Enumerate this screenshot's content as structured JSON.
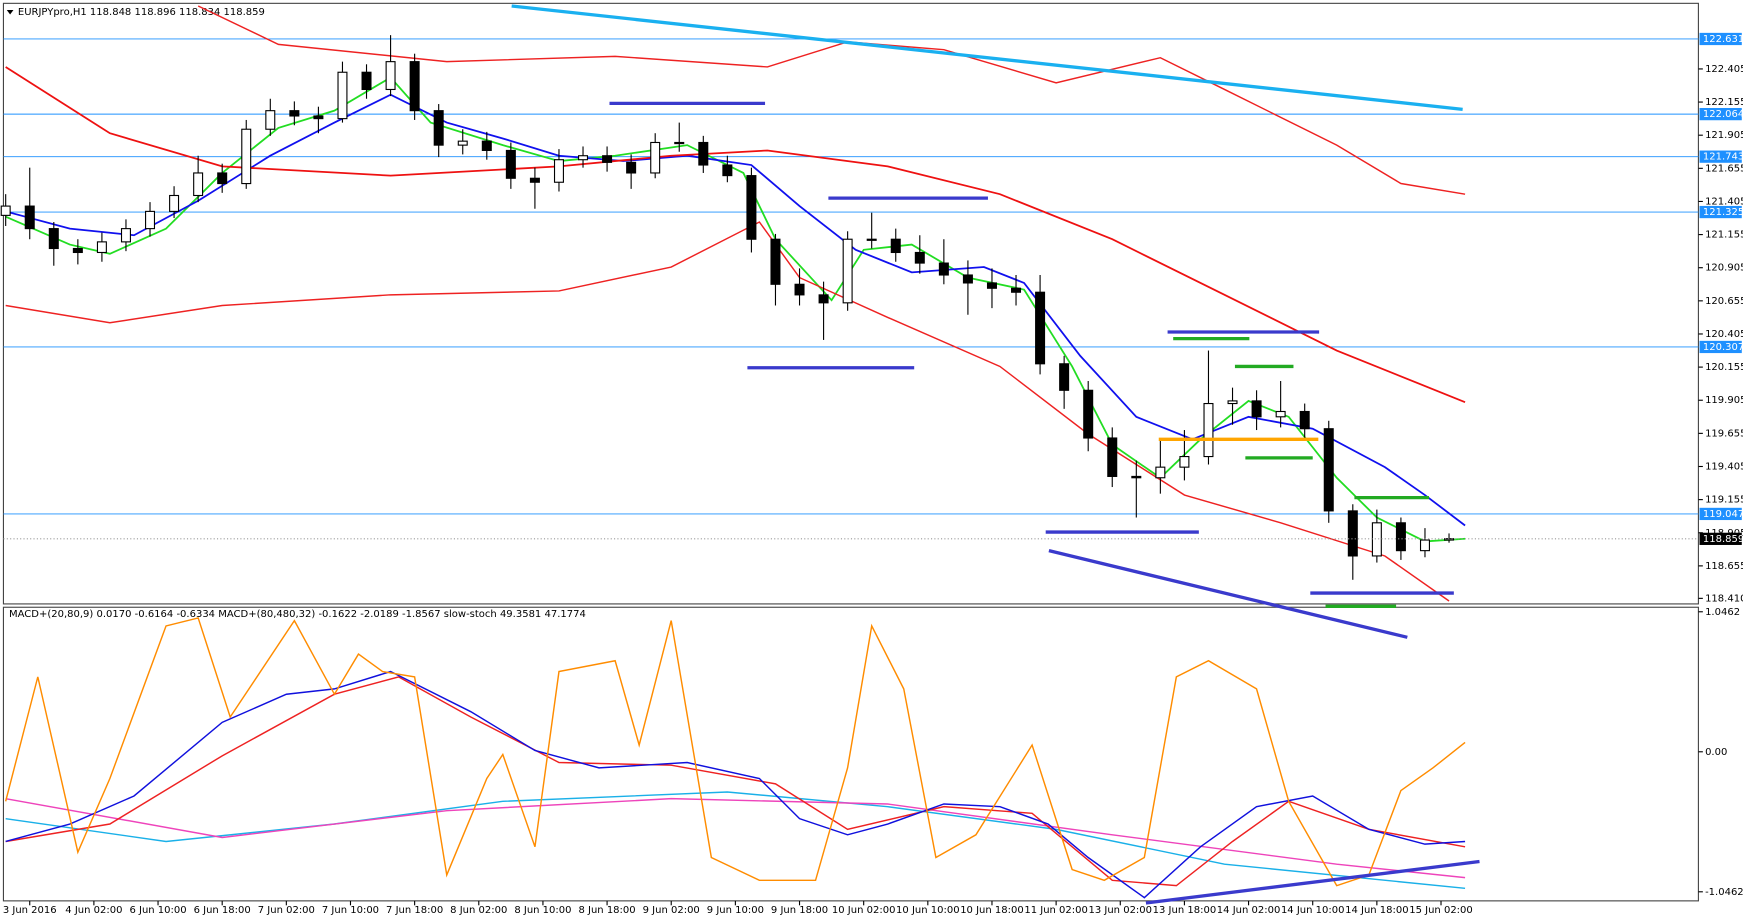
{
  "chart_data": [
    {
      "type": "candlestick",
      "title": "EURJPYpro,H1  118.848 118.896 118.834 118.859",
      "x": [
        0,
        3,
        6,
        9,
        12,
        15,
        18,
        21,
        24,
        27,
        30,
        33,
        36,
        39,
        42,
        45,
        48,
        51,
        54,
        57,
        60,
        63,
        66,
        69,
        72,
        75,
        78,
        81,
        84,
        87,
        90,
        93,
        96,
        99,
        102,
        105,
        108,
        111,
        114,
        117,
        120,
        123,
        126,
        129,
        132,
        135,
        138,
        141,
        144,
        147,
        150,
        153,
        156,
        159,
        162,
        165,
        168,
        171,
        174,
        177,
        180
      ],
      "open": [
        121.3,
        121.37,
        121.2,
        121.05,
        121.02,
        121.1,
        121.2,
        121.33,
        121.45,
        121.62,
        121.54,
        121.95,
        122.09,
        122.05,
        122.03,
        122.38,
        122.25,
        122.46,
        122.09,
        121.83,
        121.86,
        121.79,
        121.58,
        121.55,
        121.72,
        121.75,
        121.7,
        121.62,
        121.85,
        121.85,
        121.68,
        121.6,
        121.12,
        120.78,
        120.7,
        120.64,
        121.12,
        121.12,
        121.02,
        120.94,
        120.85,
        120.79,
        120.75,
        120.72,
        120.18,
        119.98,
        119.62,
        119.33,
        119.32,
        119.4,
        119.48,
        119.88,
        119.9,
        119.78,
        119.82,
        119.69,
        119.07,
        118.73,
        118.98,
        118.77,
        118.85
      ],
      "high": [
        121.46,
        121.66,
        121.25,
        121.12,
        121.17,
        121.27,
        121.4,
        121.52,
        121.75,
        121.69,
        122.02,
        122.18,
        122.16,
        122.12,
        122.46,
        122.44,
        122.66,
        122.52,
        122.14,
        121.95,
        121.93,
        121.85,
        121.66,
        121.8,
        121.82,
        121.82,
        121.76,
        121.92,
        122.0,
        121.9,
        121.75,
        121.66,
        121.16,
        120.9,
        120.8,
        121.18,
        121.32,
        121.2,
        121.15,
        121.12,
        120.96,
        120.9,
        120.85,
        120.85,
        120.24,
        120.05,
        119.7,
        119.45,
        119.62,
        119.68,
        120.28,
        120.0,
        119.98,
        120.05,
        119.88,
        119.75,
        119.12,
        119.08,
        119.02,
        118.94,
        118.9
      ],
      "low": [
        121.22,
        121.12,
        120.92,
        120.93,
        120.95,
        121.03,
        121.14,
        121.28,
        121.4,
        121.47,
        121.5,
        121.9,
        121.98,
        121.92,
        122.0,
        122.18,
        122.2,
        122.02,
        121.74,
        121.76,
        121.72,
        121.5,
        121.35,
        121.48,
        121.66,
        121.63,
        121.5,
        121.58,
        121.78,
        121.62,
        121.55,
        121.02,
        120.62,
        120.62,
        120.36,
        120.58,
        121.05,
        120.95,
        120.86,
        120.78,
        120.55,
        120.6,
        120.62,
        120.1,
        119.84,
        119.52,
        119.25,
        119.02,
        119.2,
        119.3,
        119.42,
        119.72,
        119.68,
        119.7,
        119.6,
        118.98,
        118.55,
        118.68,
        118.7,
        118.72,
        118.83
      ],
      "close": [
        121.37,
        121.2,
        121.05,
        121.02,
        121.1,
        121.2,
        121.33,
        121.45,
        121.62,
        121.54,
        121.95,
        122.09,
        122.05,
        122.03,
        122.38,
        122.25,
        122.46,
        122.09,
        121.83,
        121.86,
        121.79,
        121.58,
        121.55,
        121.72,
        121.75,
        121.7,
        121.62,
        121.85,
        121.85,
        121.68,
        121.6,
        121.12,
        120.78,
        120.7,
        120.64,
        121.12,
        121.12,
        121.02,
        120.94,
        120.85,
        120.79,
        120.75,
        120.72,
        120.18,
        119.98,
        119.62,
        119.33,
        119.32,
        119.4,
        119.48,
        119.88,
        119.9,
        119.78,
        119.82,
        119.69,
        119.07,
        118.73,
        118.98,
        118.77,
        118.85,
        118.86
      ],
      "xlim": [
        -0.28,
        211.1
      ],
      "ylim": [
        118.368,
        122.9
      ],
      "yticks": [
        122.405,
        122.155,
        121.905,
        121.655,
        121.405,
        121.155,
        120.905,
        120.655,
        120.405,
        120.155,
        119.905,
        119.655,
        119.405,
        119.155,
        118.905,
        118.655,
        {
          "value": 118.41,
          "label": "118.410"
        }
      ],
      "levels": [
        {
          "value": 122.631,
          "color": "#1e90ff"
        },
        {
          "value": 122.064,
          "color": "#1e90ff"
        },
        {
          "value": 121.743,
          "color": "#1e90ff"
        },
        {
          "value": 121.325,
          "color": "#1e90ff"
        },
        {
          "value": 120.307,
          "color": "#1e90ff"
        },
        {
          "value": 119.047,
          "color": "#1e90ff"
        }
      ],
      "last_price": 118.859,
      "series": [
        {
          "color": "#22dd22",
          "x": [
            0,
            8,
            13,
            20,
            27,
            34,
            41,
            48,
            53,
            62,
            69,
            76,
            85,
            92,
            96,
            103,
            107,
            113,
            120,
            127,
            133,
            138,
            144,
            149,
            155,
            160,
            166,
            171,
            177,
            182
          ],
          "values": [
            121.29,
            121.08,
            121.01,
            121.2,
            121.62,
            121.96,
            122.09,
            122.34,
            122.0,
            121.83,
            121.71,
            121.75,
            121.83,
            121.62,
            121.12,
            120.66,
            121.04,
            121.08,
            120.83,
            120.74,
            120.16,
            119.57,
            119.32,
            119.61,
            119.9,
            119.78,
            119.32,
            119.02,
            118.84,
            118.86
          ]
        },
        {
          "color": "#1010ee",
          "x": [
            0,
            8,
            16,
            24,
            33,
            41,
            48,
            55,
            62,
            69,
            77,
            85,
            93,
            99,
            106,
            113,
            122,
            127,
            134,
            141,
            148,
            155,
            163,
            172,
            177,
            182
          ],
          "values": [
            121.33,
            121.2,
            121.15,
            121.41,
            121.75,
            122.0,
            122.21,
            122.0,
            121.88,
            121.75,
            121.71,
            121.75,
            121.68,
            121.37,
            121.04,
            120.87,
            120.91,
            120.79,
            120.24,
            119.78,
            119.61,
            119.78,
            119.69,
            119.4,
            119.19,
            118.96
          ]
        },
        {
          "color": "#ee1111",
          "x": [
            0,
            13,
            27,
            48,
            69,
            83,
            95,
            110,
            124,
            138,
            152,
            166,
            182
          ],
          "values": [
            122.42,
            121.92,
            121.67,
            121.6,
            121.67,
            121.75,
            121.79,
            121.67,
            121.46,
            121.12,
            120.7,
            120.28,
            119.89
          ]
        },
        {
          "color": "#ee2222",
          "x": [
            24,
            34,
            55,
            76,
            95,
            105,
            117,
            131,
            144,
            152,
            166,
            174,
            182
          ],
          "values": [
            122.88,
            122.59,
            122.46,
            122.5,
            122.42,
            122.61,
            122.55,
            122.3,
            122.49,
            122.25,
            121.83,
            121.54,
            121.46
          ]
        },
        {
          "color": "#ee2222",
          "x": [
            0,
            13,
            27,
            48,
            69,
            83,
            94,
            99,
            110,
            124,
            135,
            147,
            159,
            172,
            180
          ],
          "values": [
            120.62,
            120.49,
            120.62,
            120.7,
            120.73,
            120.91,
            121.25,
            120.83,
            120.53,
            120.16,
            119.65,
            119.19,
            118.98,
            118.73,
            118.39
          ]
        }
      ],
      "segments": [
        {
          "color": "#1ab0f0",
          "x": [
            63.1,
            181.7
          ],
          "y": [
            122.88,
            122.1
          ]
        },
        {
          "color": "#3a3acc",
          "x": [
            75.3,
            94.7
          ],
          "y": [
            122.145,
            122.145
          ]
        },
        {
          "color": "#3a3acc",
          "x": [
            102.6,
            122.5
          ],
          "y": [
            121.43,
            121.43
          ]
        },
        {
          "color": "#3a3acc",
          "x": [
            92.5,
            113.3
          ],
          "y": [
            120.15,
            120.15
          ]
        },
        {
          "color": "#3a3acc",
          "x": [
            144.9,
            163.8
          ],
          "y": [
            120.42,
            120.42
          ]
        },
        {
          "color": "#3a3acc",
          "x": [
            129.7,
            148.8
          ],
          "y": [
            118.91,
            118.91
          ]
        },
        {
          "color": "#3a3acc",
          "x": [
            162.7,
            180.6
          ],
          "y": [
            118.45,
            118.45
          ]
        },
        {
          "color": "#3a3acc",
          "x": [
            130.1,
            174.8
          ],
          "y": [
            118.77,
            118.116
          ]
        },
        {
          "color": "#22aa22",
          "x": [
            145.6,
            155.1
          ],
          "y": [
            120.37,
            120.37
          ]
        },
        {
          "color": "#22aa22",
          "x": [
            153.3,
            160.6
          ],
          "y": [
            120.16,
            120.16
          ]
        },
        {
          "color": "#22aa22",
          "x": [
            154.6,
            163
          ],
          "y": [
            119.47,
            119.47
          ]
        },
        {
          "color": "#22aa22",
          "x": [
            168.2,
            177.5
          ],
          "y": [
            119.17,
            119.17
          ]
        },
        {
          "color": "#22aa22",
          "x": [
            164.6,
            173.4
          ],
          "y": [
            118.35,
            118.35
          ]
        },
        {
          "color": "#ffa500",
          "x": [
            143.8,
            163.7
          ],
          "y": [
            119.61,
            119.61
          ]
        }
      ]
    },
    {
      "type": "line",
      "title": "MACD+(20,80,9) 0.0170 -0.6164 -0.6334   MACD+(80,480,32) -0.1622 -2.0189 -1.8567   slow-stoch 49.3581 47.1774",
      "xlim": [
        -0.28,
        211.1
      ],
      "ylim": [
        -1.114,
        1.08
      ],
      "yticks": [
        1.0462,
        {
          "value": 0,
          "label": "0.00"
        },
        -1.0462
      ],
      "xticks": [
        {
          "value": 3,
          "label": "3 Jun 2016"
        },
        {
          "value": 11,
          "label": "4 Jun 02:00"
        },
        {
          "value": 19,
          "label": "6 Jun 10:00"
        },
        {
          "value": 27,
          "label": "6 Jun 18:00"
        },
        {
          "value": 35,
          "label": "7 Jun 02:00"
        },
        {
          "value": 43,
          "label": "7 Jun 10:00"
        },
        {
          "value": 51,
          "label": "7 Jun 18:00"
        },
        {
          "value": 59,
          "label": "8 Jun 02:00"
        },
        {
          "value": 67,
          "label": "8 Jun 10:00"
        },
        {
          "value": 75,
          "label": "8 Jun 18:00"
        },
        {
          "value": 83,
          "label": "9 Jun 02:00"
        },
        {
          "value": 91,
          "label": "9 Jun 10:00"
        },
        {
          "value": 99,
          "label": "9 Jun 18:00"
        },
        {
          "value": 107,
          "label": "10 Jun 02:00"
        },
        {
          "value": 115,
          "label": "10 Jun 10:00"
        },
        {
          "value": 123,
          "label": "10 Jun 18:00"
        },
        {
          "value": 131,
          "label": "11 Jun 02:00"
        },
        {
          "value": 139,
          "label": "13 Jun 02:00"
        },
        {
          "value": 147,
          "label": "13 Jun 18:00"
        },
        {
          "value": 155,
          "label": "14 Jun 02:00"
        },
        {
          "value": 163,
          "label": "14 Jun 10:00"
        },
        {
          "value": 171,
          "label": "14 Jun 18:00"
        },
        {
          "value": 179,
          "label": "15 Jun 02:00"
        }
      ],
      "series": [
        {
          "color": "#1ab0e8",
          "x": [
            0,
            20,
            41,
            62,
            90,
            110,
            131,
            152,
            182
          ],
          "values": [
            -0.5,
            -0.67,
            -0.54,
            -0.37,
            -0.3,
            -0.41,
            -0.58,
            -0.84,
            -1.02
          ]
        },
        {
          "color": "#ee44bb",
          "x": [
            0,
            27,
            55,
            83,
            110,
            138,
            166,
            182
          ],
          "values": [
            -0.35,
            -0.64,
            -0.44,
            -0.35,
            -0.39,
            -0.62,
            -0.84,
            -0.94
          ]
        },
        {
          "color": "#ee2222",
          "x": [
            0,
            13,
            27,
            41,
            49,
            58,
            69,
            83,
            96,
            105,
            117,
            128,
            138,
            146,
            153,
            160,
            170,
            182
          ],
          "values": [
            -0.67,
            -0.54,
            -0.03,
            0.43,
            0.56,
            0.26,
            -0.08,
            -0.1,
            -0.24,
            -0.58,
            -0.41,
            -0.46,
            -0.96,
            -1.0,
            -0.67,
            -0.37,
            -0.58,
            -0.71
          ]
        },
        {
          "color": "#1010dd",
          "x": [
            0,
            8,
            16,
            27,
            35,
            41,
            48,
            58,
            66,
            74,
            85,
            94,
            99,
            105,
            110,
            117,
            124,
            130,
            135,
            142,
            149,
            156,
            163,
            170,
            177,
            182
          ],
          "values": [
            -0.67,
            -0.54,
            -0.33,
            0.22,
            0.43,
            0.47,
            0.6,
            0.3,
            0.01,
            -0.12,
            -0.08,
            -0.2,
            -0.5,
            -0.62,
            -0.54,
            -0.39,
            -0.41,
            -0.54,
            -0.79,
            -1.09,
            -0.71,
            -0.41,
            -0.33,
            -0.58,
            -0.69,
            -0.67
          ]
        },
        {
          "color": "#ff8c00",
          "x": [
            0,
            4,
            9,
            13,
            20,
            24,
            28,
            36,
            41,
            44,
            47,
            51,
            55,
            60,
            62,
            66,
            69,
            76,
            79,
            83,
            88,
            94,
            101,
            105,
            108,
            112,
            116,
            121,
            128,
            133,
            137,
            142,
            146,
            150,
            156,
            160,
            166,
            170,
            174,
            178,
            182
          ],
          "values": [
            -0.37,
            0.56,
            -0.75,
            -0.2,
            0.94,
            1.0,
            0.26,
            0.98,
            0.43,
            0.73,
            0.6,
            0.56,
            -0.92,
            -0.2,
            -0.02,
            -0.71,
            0.6,
            0.68,
            0.05,
            0.98,
            -0.79,
            -0.96,
            -0.96,
            -0.12,
            0.94,
            0.47,
            -0.79,
            -0.62,
            0.05,
            -0.88,
            -0.96,
            -0.79,
            0.56,
            0.68,
            0.47,
            -0.37,
            -1.0,
            -0.92,
            -0.29,
            -0.12,
            0.07
          ]
        }
      ],
      "segments": [
        {
          "color": "#3a3acc",
          "x": [
            142.2,
            183.8
          ],
          "y": [
            -1.13,
            -0.82
          ]
        }
      ]
    }
  ]
}
